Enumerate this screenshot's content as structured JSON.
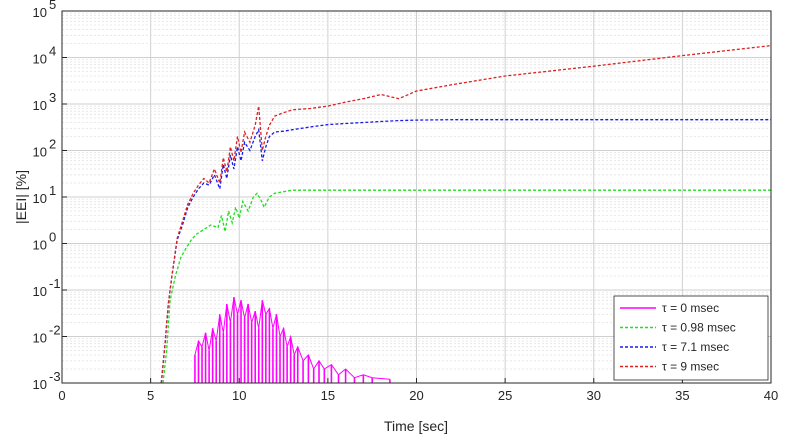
{
  "chart_data": {
    "type": "line",
    "title": "",
    "xlabel": "Time [sec]",
    "ylabel": "|EEI| [%]",
    "x_scale": "linear",
    "y_scale": "log",
    "xlim": [
      0,
      40
    ],
    "ylim": [
      0.001,
      100000
    ],
    "x_ticks": [
      "0",
      "5",
      "10",
      "15",
      "20",
      "25",
      "30",
      "35",
      "40"
    ],
    "x_tick_values": [
      0,
      5,
      10,
      15,
      20,
      25,
      30,
      35,
      40
    ],
    "y_tick_values": [
      0.001,
      0.01,
      0.1,
      1,
      10,
      100,
      1000,
      10000,
      100000
    ],
    "y_tick_exponents": [
      "-3",
      "-2",
      "-1",
      "0",
      "1",
      "2",
      "3",
      "4",
      "5"
    ],
    "y_tick_base": "10",
    "grid": true,
    "legend_position": "bottom-right",
    "series": [
      {
        "name": "τ = 0 msec",
        "color": "#ff00ff",
        "style": "solid-spikes",
        "x": [
          7.5,
          7.7,
          7.9,
          8.1,
          8.3,
          8.5,
          8.7,
          8.9,
          9.1,
          9.3,
          9.5,
          9.7,
          9.9,
          10.1,
          10.3,
          10.5,
          10.7,
          10.9,
          11.1,
          11.3,
          11.5,
          11.7,
          11.9,
          12.1,
          12.3,
          12.5,
          12.7,
          12.9,
          13.1,
          13.3,
          13.6,
          13.9,
          14.2,
          14.5,
          14.8,
          15.2,
          15.6,
          16,
          16.5,
          17,
          17.5,
          18.5
        ],
        "y": [
          0.004,
          0.008,
          0.006,
          0.012,
          0.005,
          0.015,
          0.008,
          0.03,
          0.012,
          0.05,
          0.02,
          0.07,
          0.03,
          0.06,
          0.025,
          0.05,
          0.02,
          0.035,
          0.015,
          0.06,
          0.03,
          0.04,
          0.015,
          0.03,
          0.01,
          0.015,
          0.006,
          0.01,
          0.004,
          0.006,
          0.003,
          0.004,
          0.002,
          0.003,
          0.002,
          0.0025,
          0.0015,
          0.002,
          0.0013,
          0.0015,
          0.0013,
          0.0012
        ]
      },
      {
        "name": "τ = 0.98 msec",
        "color": "#22dd22",
        "style": "dashed",
        "x": [
          5.7,
          5.9,
          6.1,
          6.4,
          6.7,
          7.0,
          7.3,
          7.6,
          8.0,
          8.4,
          8.8,
          9.0,
          9.2,
          9.4,
          9.6,
          9.8,
          10.0,
          10.2,
          10.5,
          10.8,
          11.0,
          11.2,
          11.4,
          11.7,
          12.0,
          12.5,
          13.0,
          15,
          20,
          25,
          30,
          35,
          40
        ],
        "y": [
          0.001,
          0.005,
          0.06,
          0.2,
          0.5,
          0.8,
          1.2,
          1.6,
          2,
          2.5,
          2.2,
          4,
          1.8,
          5,
          2.8,
          6,
          3.5,
          8,
          5,
          10,
          12,
          9,
          6,
          10,
          12,
          13,
          14,
          14,
          14,
          14,
          14,
          14,
          14
        ]
      },
      {
        "name": "τ = 7.1 msec",
        "color": "#1a1aee",
        "style": "dashed",
        "x": [
          5.6,
          5.8,
          6.0,
          6.2,
          6.5,
          6.8,
          7.1,
          7.4,
          7.7,
          8.0,
          8.3,
          8.6,
          8.9,
          9.1,
          9.3,
          9.5,
          9.7,
          9.9,
          10.1,
          10.3,
          10.6,
          10.9,
          11.1,
          11.3,
          11.5,
          11.7,
          12.0,
          12.5,
          13,
          14,
          15,
          16,
          17,
          18,
          19,
          20,
          22,
          25,
          30,
          35,
          40
        ],
        "y": [
          0.001,
          0.006,
          0.05,
          0.2,
          1.2,
          2.5,
          6,
          10,
          15,
          20,
          18,
          30,
          15,
          50,
          25,
          80,
          40,
          120,
          60,
          150,
          100,
          200,
          280,
          60,
          120,
          200,
          250,
          260,
          280,
          320,
          360,
          380,
          400,
          420,
          440,
          450,
          460,
          460,
          460,
          460,
          460
        ]
      },
      {
        "name": "τ = 9 msec",
        "color": "#dd2222",
        "style": "dashed",
        "x": [
          5.6,
          5.8,
          6.0,
          6.2,
          6.5,
          6.8,
          7.1,
          7.4,
          7.7,
          8.0,
          8.3,
          8.6,
          8.9,
          9.1,
          9.3,
          9.5,
          9.7,
          9.9,
          10.1,
          10.3,
          10.6,
          10.9,
          11.1,
          11.3,
          11.5,
          11.7,
          12.0,
          12.5,
          13,
          14,
          15,
          16,
          17,
          18,
          19,
          20,
          22,
          25,
          30,
          35,
          40
        ],
        "y": [
          0.001,
          0.006,
          0.05,
          0.2,
          1.3,
          3,
          7,
          12,
          18,
          25,
          20,
          40,
          20,
          70,
          35,
          120,
          60,
          200,
          90,
          250,
          150,
          350,
          900,
          100,
          200,
          350,
          550,
          650,
          750,
          800,
          900,
          1100,
          1300,
          1600,
          1300,
          1900,
          2600,
          4000,
          6500,
          11000,
          18000
        ]
      }
    ]
  }
}
